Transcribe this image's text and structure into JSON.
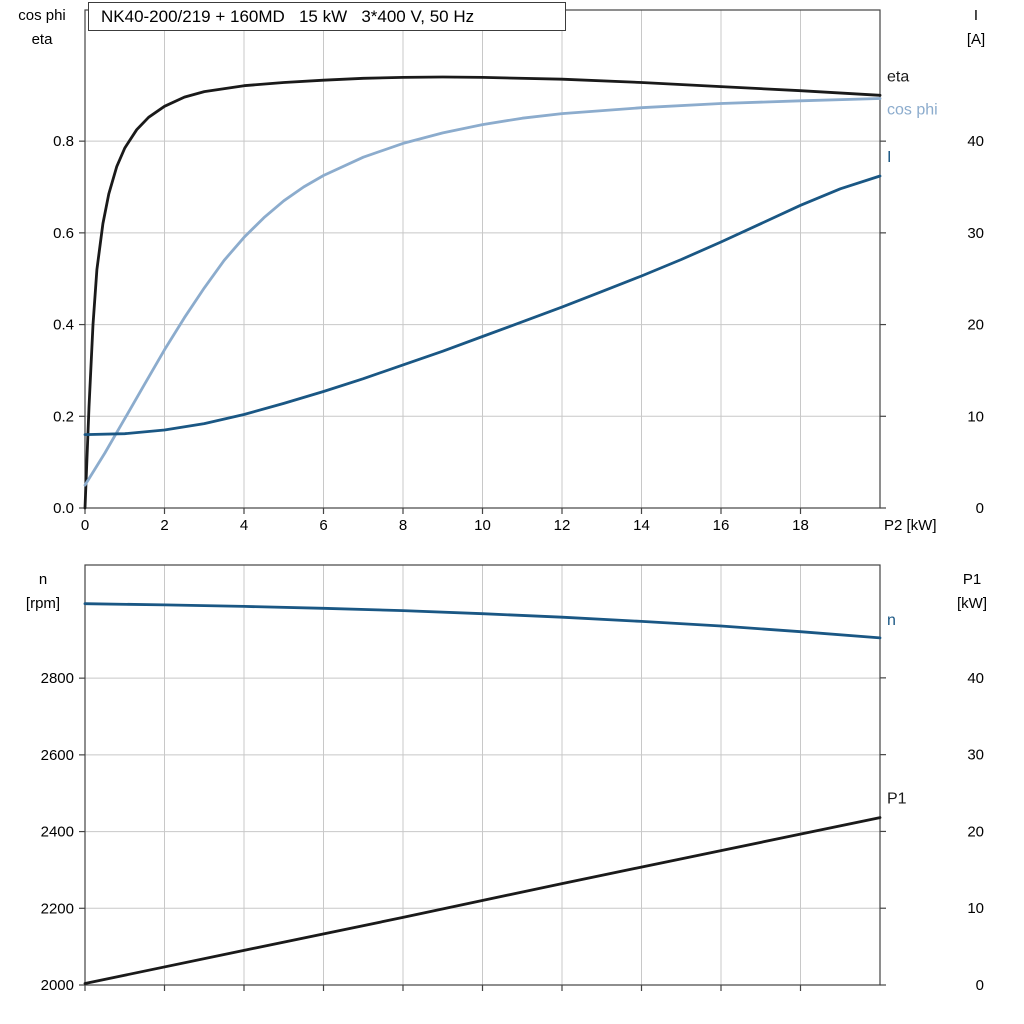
{
  "style": {
    "background": "#ffffff",
    "grid_color": "#c8c8c8",
    "frame_color": "#444444",
    "text_color": "#000000"
  },
  "chart_data": [
    {
      "type": "line",
      "name": "motor-performance-top",
      "title": "NK40-200/219 + 160MD   15 kW   3*400 V, 50 Hz",
      "x_axis": {
        "label": "P2 [kW]",
        "range": [
          0,
          20
        ],
        "ticks": [
          {
            "v": 0,
            "label": "0"
          },
          {
            "v": 2,
            "label": "2"
          },
          {
            "v": 4,
            "label": "4"
          },
          {
            "v": 6,
            "label": "6"
          },
          {
            "v": 8,
            "label": "8"
          },
          {
            "v": 10,
            "label": "10"
          },
          {
            "v": 12,
            "label": "12"
          },
          {
            "v": 14,
            "label": "14"
          },
          {
            "v": 16,
            "label": "16"
          },
          {
            "v": 18,
            "label": "18"
          }
        ]
      },
      "y_left": {
        "label_line1": "cos phi",
        "label_line2": "eta",
        "range": [
          0,
          1.086
        ],
        "ticks": [
          {
            "v": 0,
            "label": "0.0"
          },
          {
            "v": 0.2,
            "label": "0.2"
          },
          {
            "v": 0.4,
            "label": "0.4"
          },
          {
            "v": 0.6,
            "label": "0.6"
          },
          {
            "v": 0.8,
            "label": "0.8"
          }
        ]
      },
      "y_right": {
        "label_line1": "I",
        "label_line2": "[A]",
        "range": [
          0,
          54.3
        ],
        "ticks": [
          {
            "v": 0,
            "label": "0"
          },
          {
            "v": 10,
            "label": "10"
          },
          {
            "v": 20,
            "label": "20"
          },
          {
            "v": 30,
            "label": "30"
          },
          {
            "v": 40,
            "label": "40"
          }
        ]
      },
      "series": [
        {
          "id": "eta",
          "label": "eta",
          "axis": "left",
          "color": "#1a1a1a",
          "label_dy": -14,
          "x": [
            0,
            0.1,
            0.2,
            0.3,
            0.45,
            0.6,
            0.8,
            1,
            1.3,
            1.6,
            2,
            2.5,
            3,
            4,
            5,
            6,
            7,
            8,
            9,
            10,
            12,
            14,
            16,
            18,
            20
          ],
          "y": [
            0,
            0.22,
            0.4,
            0.52,
            0.62,
            0.685,
            0.745,
            0.785,
            0.825,
            0.852,
            0.876,
            0.896,
            0.908,
            0.921,
            0.928,
            0.933,
            0.937,
            0.939,
            0.94,
            0.939,
            0.935,
            0.928,
            0.919,
            0.91,
            0.9
          ]
        },
        {
          "id": "cos-phi",
          "label": "cos phi",
          "axis": "left",
          "color": "#8caccd",
          "label_dy": 16,
          "x": [
            0,
            0.5,
            1,
            1.5,
            2,
            2.5,
            3,
            3.5,
            4,
            4.5,
            5,
            5.5,
            6,
            7,
            8,
            9,
            10,
            11,
            12,
            14,
            16,
            18,
            20
          ],
          "y": [
            0.05,
            0.12,
            0.195,
            0.27,
            0.345,
            0.415,
            0.48,
            0.54,
            0.59,
            0.633,
            0.67,
            0.7,
            0.725,
            0.765,
            0.795,
            0.818,
            0.836,
            0.85,
            0.86,
            0.873,
            0.882,
            0.888,
            0.893
          ]
        },
        {
          "id": "i",
          "label": "I",
          "axis": "right",
          "color": "#1a5784",
          "label_dy": -14,
          "x": [
            0,
            1,
            2,
            3,
            4,
            5,
            6,
            7,
            8,
            9,
            10,
            11,
            12,
            13,
            14,
            15,
            16,
            17,
            18,
            19,
            20
          ],
          "y": [
            8.0,
            8.1,
            8.5,
            9.2,
            10.2,
            11.4,
            12.7,
            14.1,
            15.6,
            17.1,
            18.7,
            20.3,
            21.9,
            23.6,
            25.3,
            27.1,
            29.0,
            31.0,
            33.0,
            34.8,
            36.2
          ]
        }
      ]
    },
    {
      "type": "line",
      "name": "motor-performance-bottom",
      "x_axis": {
        "range": [
          0,
          20
        ],
        "ticks": [
          {
            "v": 0
          },
          {
            "v": 2
          },
          {
            "v": 4
          },
          {
            "v": 6
          },
          {
            "v": 8
          },
          {
            "v": 10
          },
          {
            "v": 12
          },
          {
            "v": 14
          },
          {
            "v": 16
          },
          {
            "v": 18
          }
        ]
      },
      "y_left": {
        "label_line1": "n",
        "label_line2": "[rpm]",
        "range": [
          2000,
          3095
        ],
        "ticks": [
          {
            "v": 2000,
            "label": "2000"
          },
          {
            "v": 2200,
            "label": "2200"
          },
          {
            "v": 2400,
            "label": "2400"
          },
          {
            "v": 2600,
            "label": "2600"
          },
          {
            "v": 2800,
            "label": "2800"
          }
        ]
      },
      "y_right": {
        "label_line1": "P1",
        "label_line2": "[kW]",
        "range": [
          0,
          54.7
        ],
        "ticks": [
          {
            "v": 0,
            "label": "0"
          },
          {
            "v": 10,
            "label": "10"
          },
          {
            "v": 20,
            "label": "20"
          },
          {
            "v": 30,
            "label": "30"
          },
          {
            "v": 40,
            "label": "40"
          }
        ]
      },
      "series": [
        {
          "id": "n",
          "label": "n",
          "axis": "left",
          "color": "#1a5784",
          "label_dy": -13,
          "x": [
            0,
            2,
            4,
            6,
            8,
            10,
            12,
            14,
            16,
            18,
            20
          ],
          "y": [
            2994,
            2991,
            2987,
            2982,
            2976,
            2968,
            2959,
            2948,
            2936,
            2921,
            2905
          ]
        },
        {
          "id": "p1",
          "label": "P1",
          "axis": "right",
          "color": "#1a1a1a",
          "label_dy": -14,
          "x": [
            0,
            4,
            8,
            12,
            16,
            20
          ],
          "y": [
            0.2,
            4.5,
            8.8,
            13.2,
            17.5,
            21.8
          ]
        }
      ]
    }
  ]
}
